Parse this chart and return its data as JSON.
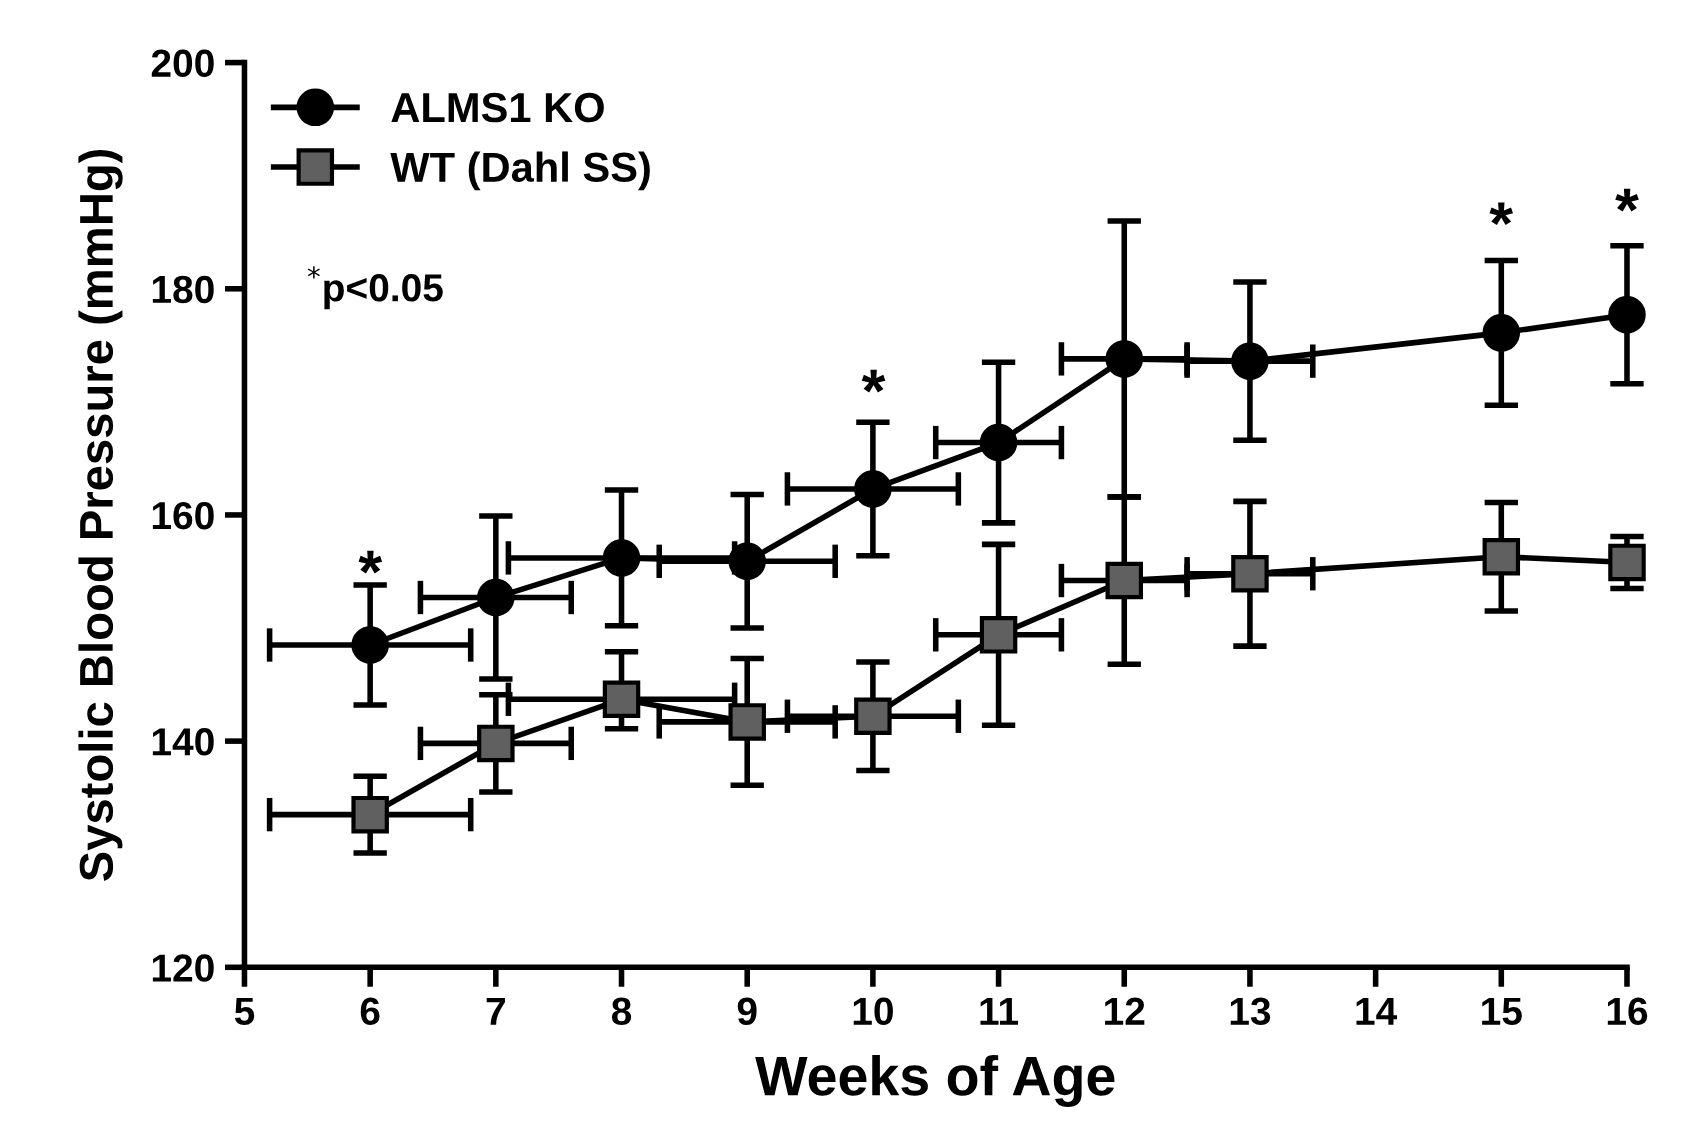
{
  "chart_data": {
    "type": "line",
    "xlabel": "Weeks of Age",
    "ylabel": "Systolic Blood Pressure (mmHg)",
    "xlim": [
      5,
      16
    ],
    "xticks": [
      5,
      6,
      7,
      8,
      9,
      10,
      11,
      12,
      13,
      14,
      15,
      16
    ],
    "ylim": [
      120,
      200
    ],
    "yticks": [
      120,
      140,
      160,
      180,
      200
    ],
    "grid": false,
    "legend": "top left",
    "series": [
      {
        "name": "ALMS1 KO",
        "color": "#000000",
        "marker": "circle",
        "x": [
          6,
          7,
          8,
          9,
          10,
          11,
          12,
          13,
          15,
          16
        ],
        "values": [
          148.5,
          152.7,
          156.2,
          155.9,
          162.3,
          166.4,
          173.8,
          173.6,
          176.1,
          177.7
        ],
        "errors": [
          5.3,
          7.2,
          6,
          5.9,
          5.9,
          7.1,
          12.2,
          7,
          6.4,
          6.1
        ],
        "xerrors": [
          0.8,
          0.6,
          0.9,
          0.7,
          0.68,
          0.5,
          0.5,
          0.5,
          null,
          null
        ]
      },
      {
        "name": "WT (Dahl SS)",
        "color": "#606060",
        "marker": "square",
        "x": [
          6,
          7,
          8,
          9,
          10,
          11,
          12,
          13,
          15,
          16
        ],
        "values": [
          133.5,
          139.8,
          143.7,
          141.7,
          142.2,
          149.4,
          154.2,
          154.8,
          156.3,
          155.8
        ],
        "errors": [
          3.4,
          4.3,
          [
            141.1,
            147.9
          ],
          5.6,
          4.8,
          8,
          7.4,
          6.4,
          4.8,
          2.3
        ],
        "xerrors": [
          0.8,
          0.6,
          0.9,
          0.7,
          0.68,
          0.5,
          0.5,
          0.5,
          null,
          null
        ]
      }
    ],
    "annotations": [
      "*",
      "*",
      "*",
      "*",
      "$^{*}$p<0.05"
    ]
  }
}
